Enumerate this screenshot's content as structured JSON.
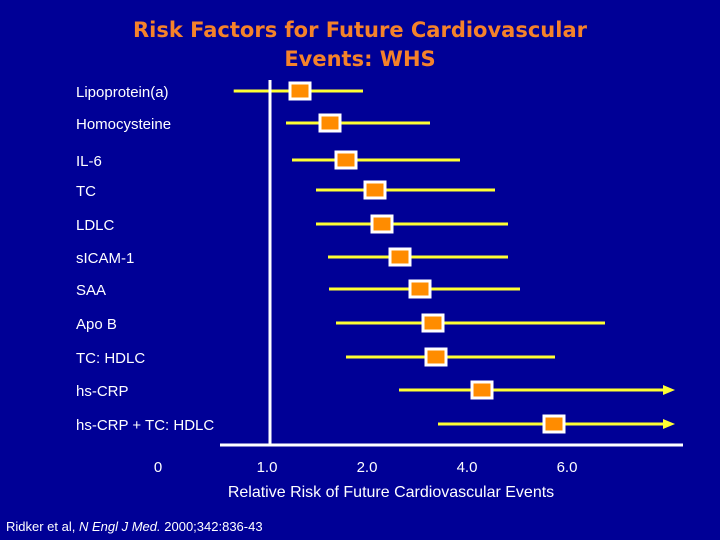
{
  "title_line1": "Risk Factors for Future Cardiovascular",
  "title_line2": "Events: WHS",
  "chart_data": {
    "type": "forest",
    "xlabel": "Relative Risk of Future Cardiovascular Events",
    "xticks": [
      "0",
      "1.0",
      "2.0",
      "4.0",
      "6.0"
    ],
    "reference_line": 1.0,
    "colors": {
      "background": "#000096",
      "ci": "#ffff33",
      "point": "#ff8c00",
      "point_border": "#ffffff",
      "title": "#f5822a"
    },
    "rows": [
      {
        "label": "Lipoprotein(a)",
        "estimate": 1.3,
        "lower": 0.67,
        "upper": 1.93,
        "arrow": false
      },
      {
        "label": "Homocysteine",
        "estimate": 1.6,
        "lower": 1.16,
        "upper": 3.2,
        "arrow": false
      },
      {
        "label": "IL-6",
        "estimate": 1.76,
        "lower": 1.22,
        "upper": 3.8,
        "arrow": false
      },
      {
        "label": "TC",
        "estimate": 2.1,
        "lower": 1.46,
        "upper": 4.5,
        "arrow": false
      },
      {
        "label": "LDLC",
        "estimate": 2.24,
        "lower": 1.46,
        "upper": 4.76,
        "arrow": false
      },
      {
        "label": "sICAM-1",
        "estimate": 2.6,
        "lower": 1.58,
        "upper": 4.76,
        "arrow": false
      },
      {
        "label": "SAA",
        "estimate": 3.0,
        "lower": 1.59,
        "upper": 5.0,
        "arrow": false
      },
      {
        "label": "Apo B",
        "estimate": 3.26,
        "lower": 1.66,
        "upper": 6.7,
        "arrow": false
      },
      {
        "label": "TC: HDLC",
        "estimate": 3.32,
        "lower": 1.76,
        "upper": 5.7,
        "arrow": false
      },
      {
        "label": "hs-CRP",
        "estimate": 4.24,
        "lower": 2.58,
        "upper": null,
        "arrow": true
      },
      {
        "label": "hs-CRP + TC: HDLC",
        "estimate": 5.68,
        "lower": 3.36,
        "upper": null,
        "arrow": true
      }
    ]
  },
  "citation": {
    "authors": "Ridker et al, ",
    "journal": "N Engl J Med.",
    "details": " 2000;342:836-43"
  }
}
